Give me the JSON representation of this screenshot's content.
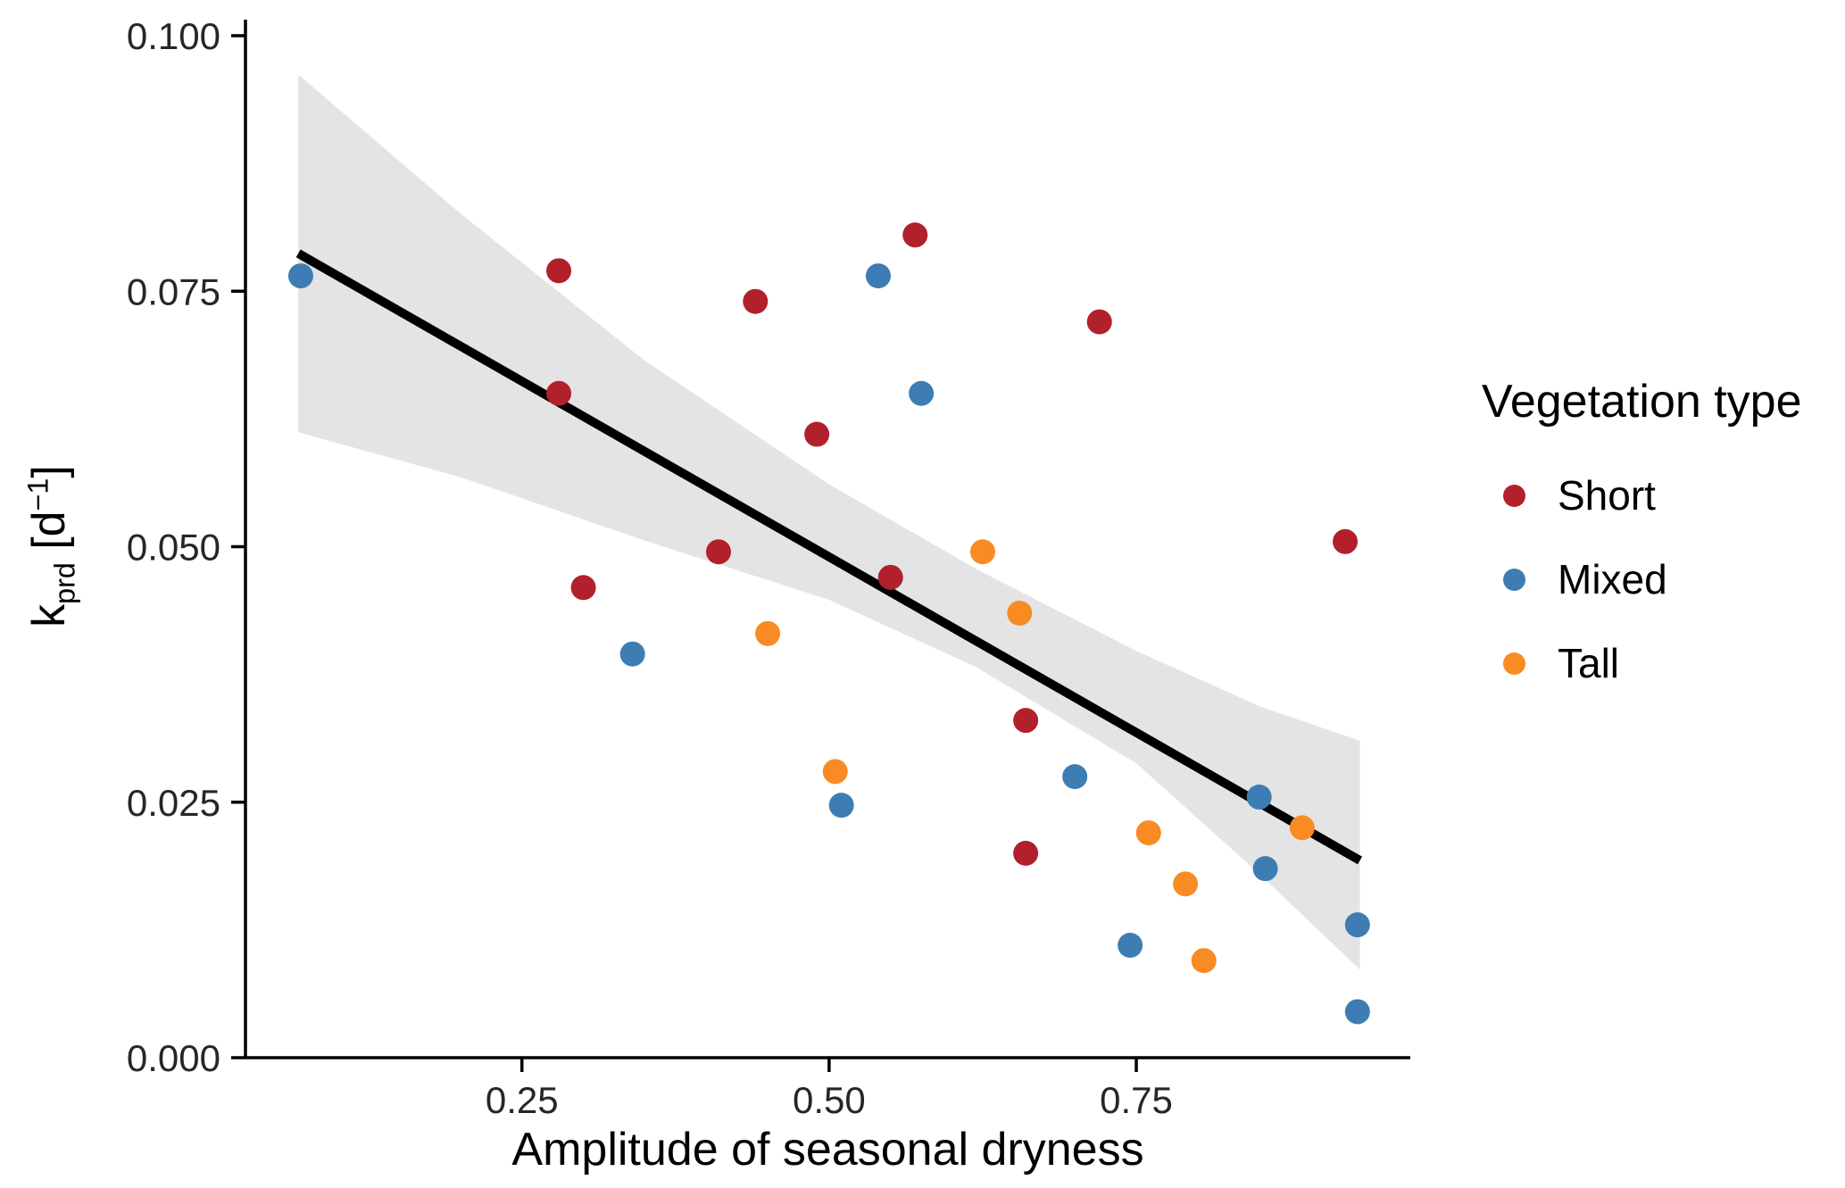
{
  "figure": {
    "background": "#FFFFFF",
    "axis_color": "#000000",
    "tick_label_color": "#262626"
  },
  "chart_data": {
    "type": "scatter",
    "xlabel": "Amplitude of seasonal dryness",
    "ylabel": {
      "base": "k",
      "sub": "prd",
      "bracket_open": " [d",
      "sup": "−1",
      "bracket_close": "]"
    },
    "xlim": [
      0.025,
      0.973
    ],
    "ylim": [
      0.0,
      0.1
    ],
    "x_ticks": [
      0.25,
      0.5,
      0.75
    ],
    "x_tick_labels": [
      "0.25",
      "0.50",
      "0.75"
    ],
    "y_ticks": [
      0.0,
      0.025,
      0.05,
      0.075,
      0.1
    ],
    "y_tick_labels": [
      "0.000",
      "0.025",
      "0.050",
      "0.075",
      "0.100"
    ],
    "grid": false,
    "legend": {
      "title": "Vegetation type",
      "position": "right"
    },
    "series": [
      {
        "name": "Short",
        "color": "#B2202B",
        "points": [
          [
            0.28,
            0.077
          ],
          [
            0.28,
            0.065
          ],
          [
            0.3,
            0.046
          ],
          [
            0.41,
            0.0495
          ],
          [
            0.44,
            0.074
          ],
          [
            0.49,
            0.061
          ],
          [
            0.55,
            0.047
          ],
          [
            0.57,
            0.0805
          ],
          [
            0.66,
            0.033
          ],
          [
            0.66,
            0.02
          ],
          [
            0.72,
            0.072
          ],
          [
            0.92,
            0.0505
          ]
        ]
      },
      {
        "name": "Mixed",
        "color": "#3D7DB4",
        "points": [
          [
            0.07,
            0.0765
          ],
          [
            0.34,
            0.0395
          ],
          [
            0.51,
            0.0247
          ],
          [
            0.54,
            0.0765
          ],
          [
            0.575,
            0.065
          ],
          [
            0.7,
            0.0275
          ],
          [
            0.745,
            0.011
          ],
          [
            0.85,
            0.0255
          ],
          [
            0.855,
            0.0185
          ],
          [
            0.93,
            0.013
          ],
          [
            0.93,
            0.0045
          ]
        ]
      },
      {
        "name": "Tall",
        "color": "#F98B25",
        "points": [
          [
            0.45,
            0.0415
          ],
          [
            0.505,
            0.028
          ],
          [
            0.625,
            0.0495
          ],
          [
            0.655,
            0.0435
          ],
          [
            0.76,
            0.022
          ],
          [
            0.79,
            0.017
          ],
          [
            0.805,
            0.0095
          ],
          [
            0.885,
            0.0225
          ]
        ]
      }
    ],
    "trend": {
      "color": "#000000",
      "x": [
        0.068,
        0.932
      ],
      "y": [
        0.0787,
        0.0193
      ]
    },
    "confidence_band": {
      "color": "#E4E4E4",
      "x": [
        0.068,
        0.2,
        0.35,
        0.5,
        0.62,
        0.75,
        0.85,
        0.932
      ],
      "upper": [
        0.0962,
        0.0826,
        0.0682,
        0.0561,
        0.0478,
        0.0398,
        0.0344,
        0.031
      ],
      "lower": [
        0.0612,
        0.0568,
        0.0506,
        0.0448,
        0.0382,
        0.0288,
        0.018,
        0.0086
      ]
    }
  }
}
